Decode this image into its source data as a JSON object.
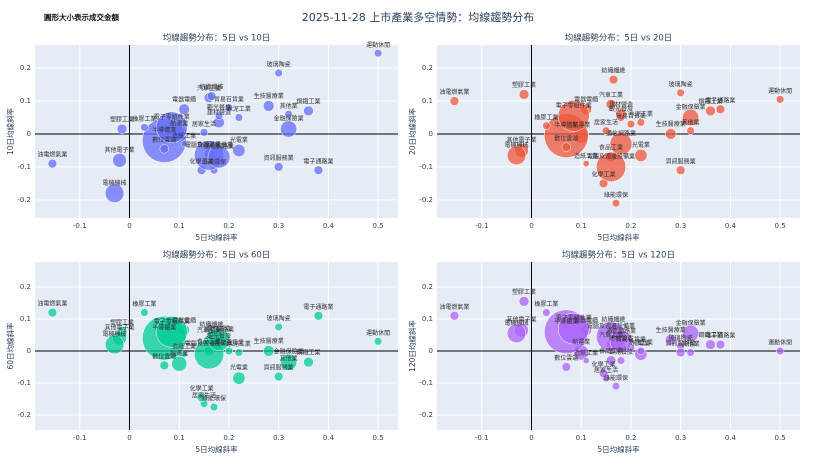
{
  "title": "2025-11-28 上市產業多空情勢：均線趨勢分布",
  "note": "圓形大小表示成交金額",
  "chart_data": [
    {
      "type": "scatter",
      "title": "均線趨勢分布：5日 vs 10日",
      "x_label": "5日均線斜率",
      "y_label": "10日均線斜率",
      "color": "#636efa",
      "xlim": [
        -0.19,
        0.54
      ],
      "ylim": [
        -0.255,
        0.27
      ],
      "xticks": [
        -0.1,
        0,
        0.1,
        0.2,
        0.3,
        0.4,
        0.5
      ],
      "yticks": [
        -0.2,
        -0.1,
        0,
        0.1,
        0.2
      ],
      "labels": [
        "運動休閒",
        "玻璃陶瓷",
        "電子通路業",
        "資訊服務業",
        "鋼鐵工業",
        "其他業",
        "金融保險業",
        "生技醫療業",
        "光電業",
        "水泥工業",
        "貿易百貨業",
        "建材營造",
        "汽車工業",
        "紡織纖維",
        "觀光餐旅",
        "綠能環保",
        "居家生活",
        "化學工業",
        "電器電纜",
        "食品工業",
        "電腦及週邊設備業",
        "通信網路業",
        "航運業",
        "半導體業",
        "電子零組件業",
        "數位雲端",
        "橡膠工業",
        "塑膠工業",
        "其他電子業",
        "電機機械",
        "油電燃氣業",
        "造紙工業"
      ],
      "x": [
        0.5,
        0.3,
        0.38,
        0.3,
        0.36,
        0.32,
        0.32,
        0.28,
        0.22,
        0.22,
        0.2,
        0.18,
        0.16,
        0.165,
        0.18,
        0.17,
        0.15,
        0.145,
        0.11,
        0.16,
        0.16,
        0.18,
        0.1,
        0.07,
        0.085,
        0.07,
        0.03,
        -0.015,
        -0.02,
        -0.03,
        -0.155,
        0.11
      ],
      "y": [
        0.245,
        0.185,
        -0.11,
        -0.1,
        0.07,
        0.06,
        0.015,
        0.085,
        -0.05,
        0.05,
        0.08,
        0.035,
        0.11,
        0.115,
        0.055,
        -0.11,
        0.005,
        -0.11,
        0.075,
        -0.06,
        -0.065,
        -0.07,
        0.0,
        -0.02,
        0.02,
        -0.045,
        0.02,
        0.015,
        -0.08,
        -0.18,
        -0.09,
        -0.03
      ],
      "sizes": [
        3,
        3,
        4,
        4,
        5,
        3,
        14,
        6,
        8,
        3,
        3,
        6,
        5,
        4,
        3,
        3,
        3,
        4,
        6,
        5,
        45,
        25,
        12,
        100,
        50,
        4,
        3,
        5,
        10,
        18,
        4,
        2
      ]
    },
    {
      "type": "scatter",
      "title": "均線趨勢分布：5日 vs 20日",
      "x_label": "5日均線斜率",
      "y_label": "20日均線斜率",
      "color": "#ef553b",
      "xlim": [
        -0.19,
        0.54
      ],
      "ylim": [
        -0.255,
        0.27
      ],
      "xticks": [
        -0.1,
        0,
        0.1,
        0.2,
        0.3,
        0.4,
        0.5
      ],
      "yticks": [
        -0.2,
        -0.1,
        0,
        0.1,
        0.2
      ],
      "labels": [
        "運動休閒",
        "玻璃陶瓷",
        "電子通路業",
        "資訊服務業",
        "鋼鐵工業",
        "其他業",
        "金融保險業",
        "生技醫療業",
        "光電業",
        "水泥工業",
        "貿易百貨業",
        "建材營造",
        "汽車工業",
        "紡織纖維",
        "觀光餐旅",
        "綠能環保",
        "居家生活",
        "化學工業",
        "電器電纜",
        "食品工業",
        "電腦及週邊設備業",
        "通信網路業",
        "航運業",
        "半導體業",
        "電子零組件業",
        "數位雲端",
        "橡膠工業",
        "塑膠工業",
        "其他電子業",
        "電機機械",
        "油電燃氣業",
        "造紙工業"
      ],
      "x": [
        0.5,
        0.3,
        0.38,
        0.3,
        0.36,
        0.32,
        0.32,
        0.28,
        0.22,
        0.22,
        0.2,
        0.18,
        0.16,
        0.165,
        0.18,
        0.17,
        0.15,
        0.145,
        0.11,
        0.16,
        0.16,
        0.18,
        0.1,
        0.07,
        0.085,
        0.07,
        0.03,
        -0.015,
        -0.02,
        -0.03,
        -0.155,
        0.11
      ],
      "y": [
        0.105,
        0.125,
        0.075,
        -0.11,
        0.07,
        0.01,
        0.05,
        0.0,
        -0.065,
        0.035,
        0.03,
        0.06,
        0.09,
        0.165,
        0.05,
        -0.21,
        0.01,
        -0.15,
        0.075,
        -0.07,
        -0.1,
        -0.03,
        -0.005,
        -0.005,
        0.055,
        -0.04,
        0.025,
        0.12,
        -0.05,
        -0.065,
        0.1,
        -0.09
      ],
      "sizes": [
        3,
        3,
        4,
        4,
        5,
        3,
        14,
        6,
        8,
        3,
        3,
        6,
        5,
        4,
        3,
        3,
        3,
        4,
        6,
        5,
        45,
        25,
        12,
        100,
        50,
        4,
        3,
        5,
        10,
        18,
        4,
        2
      ]
    },
    {
      "type": "scatter",
      "title": "均線趨勢分布：5日 vs 60日",
      "x_label": "5日均線斜率",
      "y_label": "60日均線斜率",
      "color": "#00cc96",
      "xlim": [
        -0.19,
        0.54
      ],
      "ylim": [
        -0.247,
        0.278
      ],
      "xticks": [
        -0.1,
        0,
        0.1,
        0.2,
        0.3,
        0.4,
        0.5
      ],
      "yticks": [
        -0.2,
        -0.1,
        0,
        0.1,
        0.2
      ],
      "labels": [
        "運動休閒",
        "玻璃陶瓷",
        "電子通路業",
        "資訊服務業",
        "鋼鐵工業",
        "其他業",
        "金融保險業",
        "生技醫療業",
        "光電業",
        "水泥工業",
        "貿易百貨業",
        "建材營造",
        "汽車工業",
        "紡織纖維",
        "觀光餐旅",
        "綠能環保",
        "居家生活",
        "化學工業",
        "電器電纜",
        "食品工業",
        "電腦及週邊設備業",
        "通信網路業",
        "航運業",
        "半導體業",
        "電子零組件業",
        "數位雲端",
        "橡膠工業",
        "塑膠工業",
        "其他電子業",
        "電機機械",
        "油電燃氣業",
        "造紙工業"
      ],
      "x": [
        0.5,
        0.3,
        0.38,
        0.3,
        0.36,
        0.32,
        0.32,
        0.28,
        0.22,
        0.22,
        0.2,
        0.18,
        0.16,
        0.165,
        0.18,
        0.17,
        0.15,
        0.145,
        0.11,
        0.16,
        0.16,
        0.18,
        0.1,
        0.07,
        0.085,
        0.07,
        0.03,
        -0.015,
        -0.02,
        -0.03,
        -0.155,
        0.11
      ],
      "y": [
        0.03,
        0.075,
        0.11,
        -0.08,
        -0.035,
        -0.05,
        -0.035,
        0.0,
        -0.085,
        -0.005,
        0.0,
        0.04,
        0.035,
        0.055,
        0.02,
        -0.175,
        -0.165,
        -0.145,
        0.065,
        0.0,
        -0.01,
        0.035,
        -0.04,
        0.04,
        0.06,
        -0.045,
        0.12,
        0.06,
        0.04,
        0.02,
        0.12,
        -0.01
      ],
      "sizes": [
        3,
        3,
        4,
        4,
        5,
        3,
        14,
        6,
        8,
        3,
        3,
        6,
        5,
        4,
        3,
        3,
        3,
        4,
        6,
        5,
        45,
        25,
        12,
        100,
        50,
        4,
        3,
        5,
        10,
        18,
        4,
        2
      ]
    },
    {
      "type": "scatter",
      "title": "均線趨勢分布：5日 vs 120日",
      "x_label": "5日均線斜率",
      "y_label": "120日均線斜率",
      "color": "#ab63fa",
      "xlim": [
        -0.19,
        0.54
      ],
      "ylim": [
        -0.247,
        0.278
      ],
      "xticks": [
        -0.1,
        0,
        0.1,
        0.2,
        0.3,
        0.4,
        0.5
      ],
      "yticks": [
        -0.2,
        -0.1,
        0,
        0.1,
        0.2
      ],
      "labels": [
        "運動休閒",
        "玻璃陶瓷",
        "電子通路業",
        "資訊服務業",
        "鋼鐵工業",
        "其他業",
        "金融保險業",
        "生技醫療業",
        "光電業",
        "水泥工業",
        "貿易百貨業",
        "建材營造",
        "汽車工業",
        "紡織纖維",
        "觀光餐旅",
        "綠能環保",
        "居家生活",
        "化學工業",
        "電器電纜",
        "食品工業",
        "電腦及週邊設備業",
        "通信網路業",
        "航運業",
        "半導體業",
        "電子零組件業",
        "數位雲端",
        "橡膠工業",
        "塑膠工業",
        "其他電子業",
        "電機機械",
        "油電燃氣業",
        "造紙工業"
      ],
      "x": [
        0.5,
        0.3,
        0.38,
        0.3,
        0.36,
        0.32,
        0.32,
        0.28,
        0.22,
        0.22,
        0.2,
        0.18,
        0.16,
        0.165,
        0.18,
        0.17,
        0.15,
        0.145,
        0.11,
        0.16,
        0.16,
        0.18,
        0.1,
        0.07,
        0.085,
        0.07,
        0.03,
        -0.015,
        -0.02,
        -0.03,
        -0.155,
        0.11
      ],
      "y": [
        0.0,
        0.015,
        0.02,
        -0.005,
        0.02,
        -0.005,
        0.055,
        0.035,
        -0.01,
        0.0,
        0.01,
        0.01,
        0.02,
        0.07,
        -0.03,
        -0.11,
        -0.085,
        -0.07,
        0.065,
        -0.03,
        0.045,
        0.03,
        -0.005,
        0.06,
        0.07,
        -0.05,
        0.12,
        0.155,
        0.065,
        0.055,
        0.11,
        -0.03
      ],
      "sizes": [
        3,
        3,
        4,
        4,
        5,
        3,
        14,
        6,
        8,
        3,
        3,
        6,
        5,
        4,
        3,
        3,
        3,
        4,
        6,
        5,
        45,
        25,
        12,
        100,
        50,
        4,
        3,
        5,
        10,
        18,
        4,
        2
      ]
    }
  ]
}
